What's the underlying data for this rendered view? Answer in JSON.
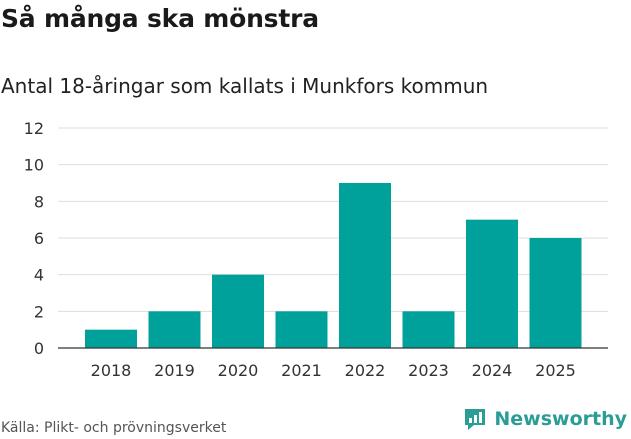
{
  "header": {
    "title": "Så många ska mönstra",
    "subtitle": "Antal 18-åringar som kallats i Munkfors kommun"
  },
  "footer": {
    "source": "Källa: Plikt- och prövningsverket",
    "brand": "Newsworthy"
  },
  "colors": {
    "bar": "#00a19a",
    "grid": "#dddddd",
    "axis": "#333333",
    "brand": "#2a9d96"
  },
  "chart_data": {
    "type": "bar",
    "categories": [
      "2018",
      "2019",
      "2020",
      "2021",
      "2022",
      "2023",
      "2024",
      "2025"
    ],
    "values": [
      1,
      2,
      4,
      2,
      9,
      2,
      7,
      6
    ],
    "title": "Så många ska mönstra",
    "subtitle": "Antal 18-åringar som kallats i Munkfors kommun",
    "xlabel": "",
    "ylabel": "",
    "ylim": [
      0,
      12
    ],
    "yticks": [
      0,
      2,
      4,
      6,
      8,
      10,
      12
    ],
    "grid": true,
    "legend": "none"
  }
}
